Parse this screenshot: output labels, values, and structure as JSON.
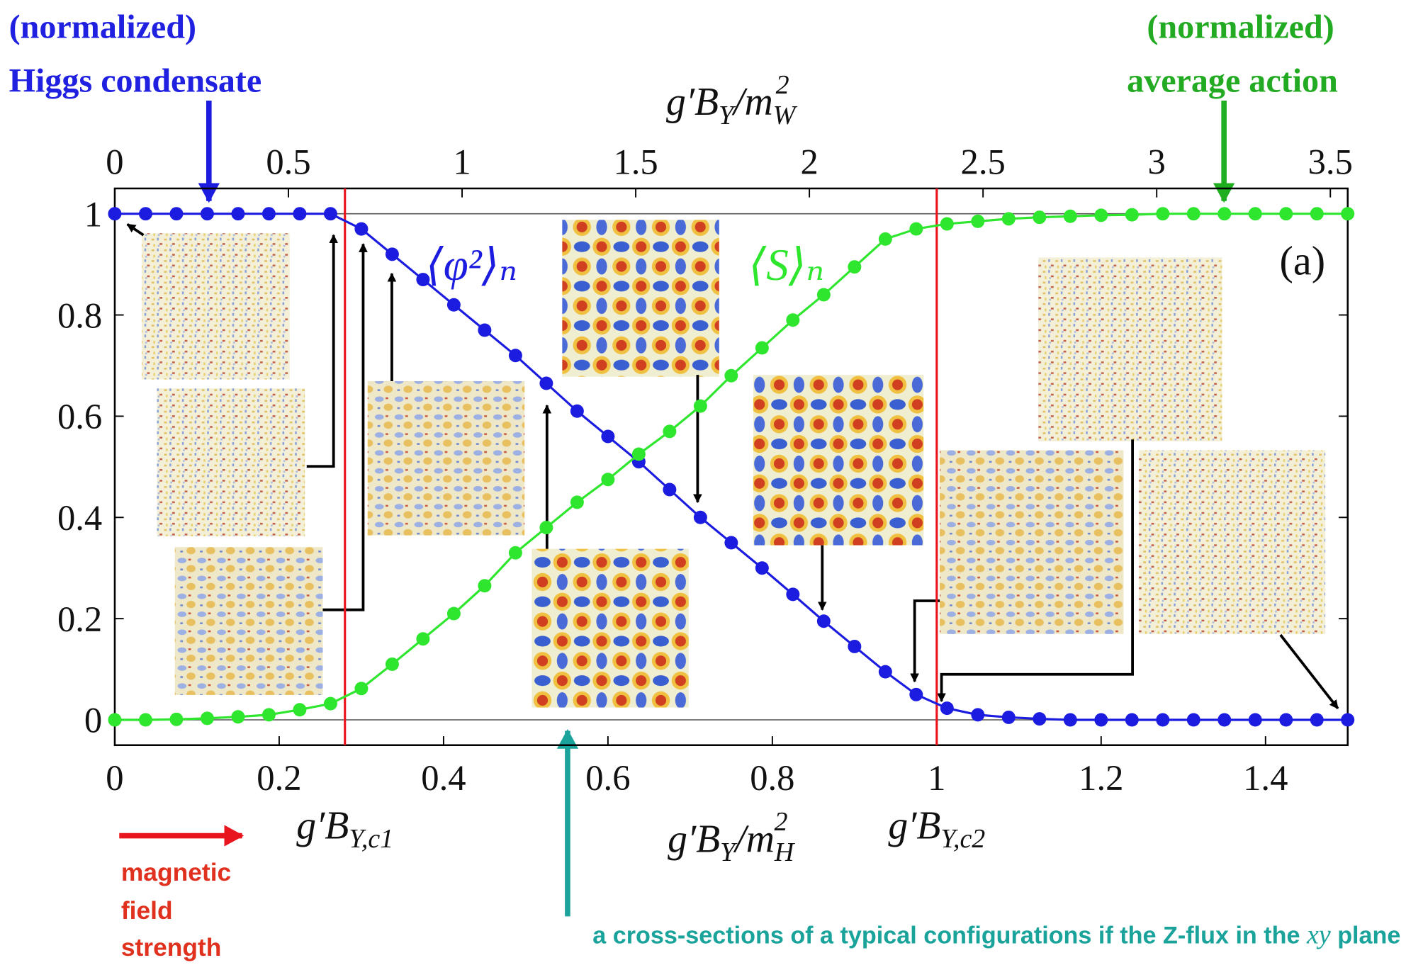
{
  "chart_data": {
    "type": "line",
    "x": [
      0,
      0.0375,
      0.075,
      0.1125,
      0.15,
      0.1875,
      0.225,
      0.2625,
      0.3,
      0.3375,
      0.375,
      0.4125,
      0.45,
      0.4875,
      0.525,
      0.5625,
      0.6,
      0.6375,
      0.675,
      0.7125,
      0.75,
      0.7875,
      0.825,
      0.8625,
      0.9,
      0.9375,
      0.975,
      1.0125,
      1.05,
      1.0875,
      1.125,
      1.1625,
      1.2,
      1.2375,
      1.275,
      1.3125,
      1.35,
      1.3875,
      1.425,
      1.4625,
      1.5
    ],
    "series": [
      {
        "name": "⟨φ²⟩ₙ",
        "color": "#1c1ce0",
        "values": [
          1,
          1,
          1,
          1,
          1,
          1,
          1,
          1,
          0.97,
          0.92,
          0.87,
          0.82,
          0.77,
          0.72,
          0.665,
          0.61,
          0.56,
          0.51,
          0.455,
          0.4,
          0.35,
          0.3,
          0.248,
          0.195,
          0.145,
          0.095,
          0.05,
          0.023,
          0.01,
          0.005,
          0.002,
          0,
          0,
          0,
          0,
          0,
          0,
          0,
          0,
          0,
          0
        ]
      },
      {
        "name": "⟨S⟩ₙ",
        "color": "#2ee62e",
        "values": [
          0,
          0,
          0.001,
          0.003,
          0.006,
          0.01,
          0.02,
          0.032,
          0.062,
          0.11,
          0.16,
          0.21,
          0.265,
          0.33,
          0.38,
          0.43,
          0.475,
          0.525,
          0.57,
          0.62,
          0.68,
          0.735,
          0.79,
          0.84,
          0.895,
          0.95,
          0.97,
          0.98,
          0.985,
          0.99,
          0.993,
          0.995,
          0.997,
          0.998,
          1,
          1,
          1,
          1,
          1,
          1,
          1
        ]
      }
    ],
    "xlim": [
      0,
      1.5
    ],
    "xticks": [
      0,
      0.2,
      0.4,
      0.6,
      0.8,
      1,
      1.2,
      1.4
    ],
    "x2lim": [
      0,
      3.55
    ],
    "x2ticks": [
      0,
      0.5,
      1,
      1.5,
      2,
      2.5,
      3,
      3.5
    ],
    "ylim": [
      -0.05,
      1.05
    ],
    "yticks": [
      0,
      0.2,
      0.4,
      0.6,
      0.8,
      1
    ],
    "xlabel": [
      "g′B",
      "Y",
      "/m",
      "H",
      "2"
    ],
    "x2label": [
      "g′B",
      "Y",
      "/m",
      "W",
      "2"
    ],
    "vlines": [
      0.28,
      1
    ],
    "vline_color": "#e8141e",
    "vline_labels": [
      [
        "g′B",
        "Y,c1"
      ],
      [
        "g′B",
        "Y,c2"
      ]
    ],
    "panel_label": "(a)",
    "annotations": {
      "left": [
        "(normalized)",
        "Higgs condensate"
      ],
      "right": [
        "(normalized)",
        "average action"
      ],
      "field": [
        "magnetic",
        "field",
        "strength"
      ],
      "caption": [
        "a cross-sections of a typical configurations if the Z-flux in the ",
        "xy",
        " plane"
      ]
    }
  }
}
